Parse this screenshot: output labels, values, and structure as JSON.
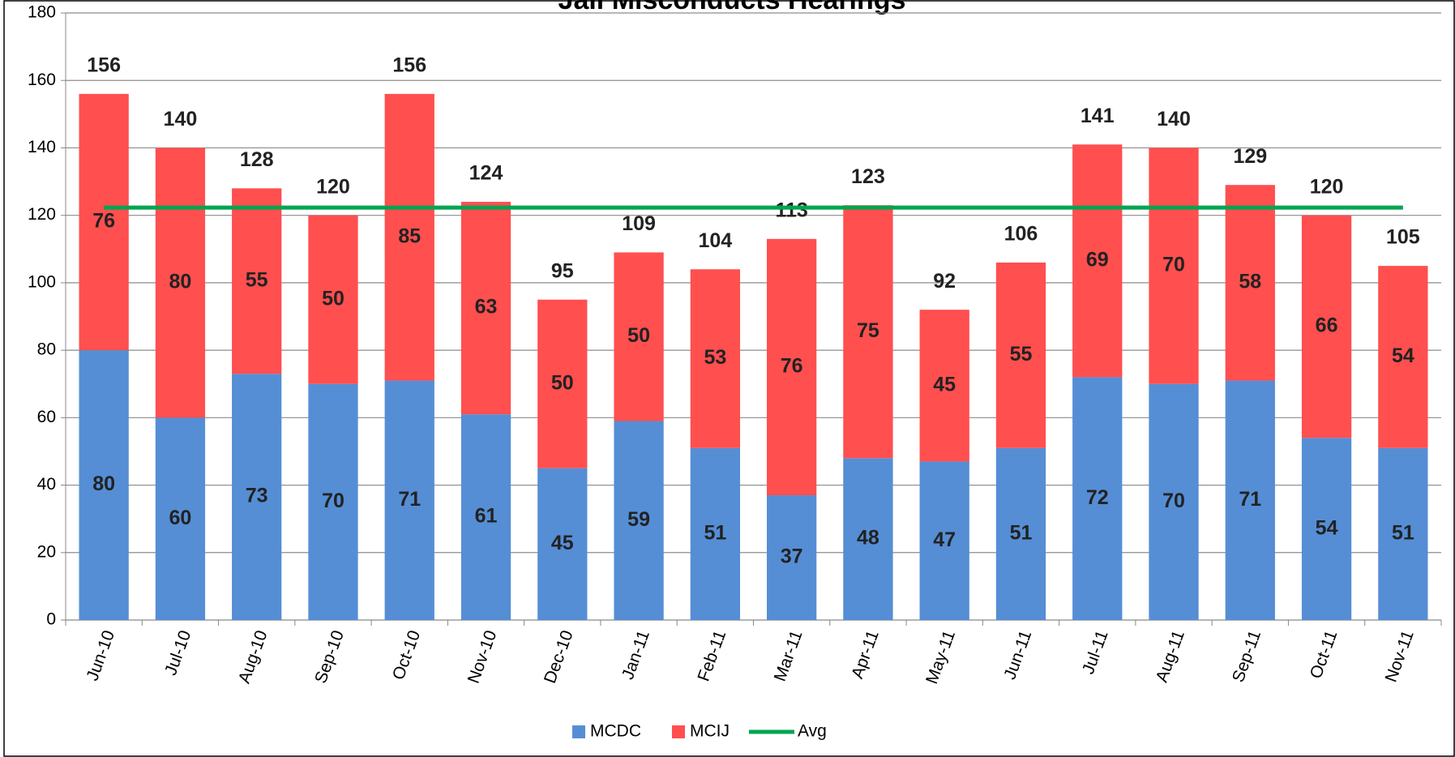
{
  "chart_data": {
    "type": "bar",
    "stacked": true,
    "title": "Jail Misconducts Hearings",
    "categories": [
      "Jun-10",
      "Jul-10",
      "Aug-10",
      "Sep-10",
      "Oct-10",
      "Nov-10",
      "Dec-10",
      "Jan-11",
      "Feb-11",
      "Mar-11",
      "Apr-11",
      "May-11",
      "Jun-11",
      "Jul-11",
      "Aug-11",
      "Sep-11",
      "Oct-11",
      "Nov-11"
    ],
    "series": [
      {
        "name": "MCDC",
        "color": "#558ed5",
        "values": [
          80,
          60,
          73,
          70,
          71,
          61,
          45,
          59,
          51,
          37,
          48,
          47,
          51,
          72,
          70,
          71,
          54,
          51
        ]
      },
      {
        "name": "MCIJ",
        "color": "#ff4f4f",
        "values": [
          76,
          80,
          55,
          50,
          85,
          63,
          50,
          50,
          53,
          76,
          75,
          45,
          55,
          69,
          70,
          58,
          66,
          54
        ]
      },
      {
        "name": "Avg",
        "type": "line",
        "color": "#00a550",
        "values": [
          122.3,
          122.3,
          122.3,
          122.3,
          122.3,
          122.3,
          122.3,
          122.3,
          122.3,
          122.3,
          122.3,
          122.3,
          122.3,
          122.3,
          122.3,
          122.3,
          122.3,
          122.3
        ]
      }
    ],
    "total_labels": [
      156,
      140,
      128,
      120,
      156,
      124,
      95,
      109,
      104,
      113,
      123,
      92,
      106,
      141,
      140,
      129,
      120,
      105
    ],
    "ylim": [
      0,
      180
    ],
    "yticks": [
      0,
      20,
      40,
      60,
      80,
      100,
      120,
      140,
      160,
      180
    ],
    "grid": true,
    "legend": "bottom"
  }
}
